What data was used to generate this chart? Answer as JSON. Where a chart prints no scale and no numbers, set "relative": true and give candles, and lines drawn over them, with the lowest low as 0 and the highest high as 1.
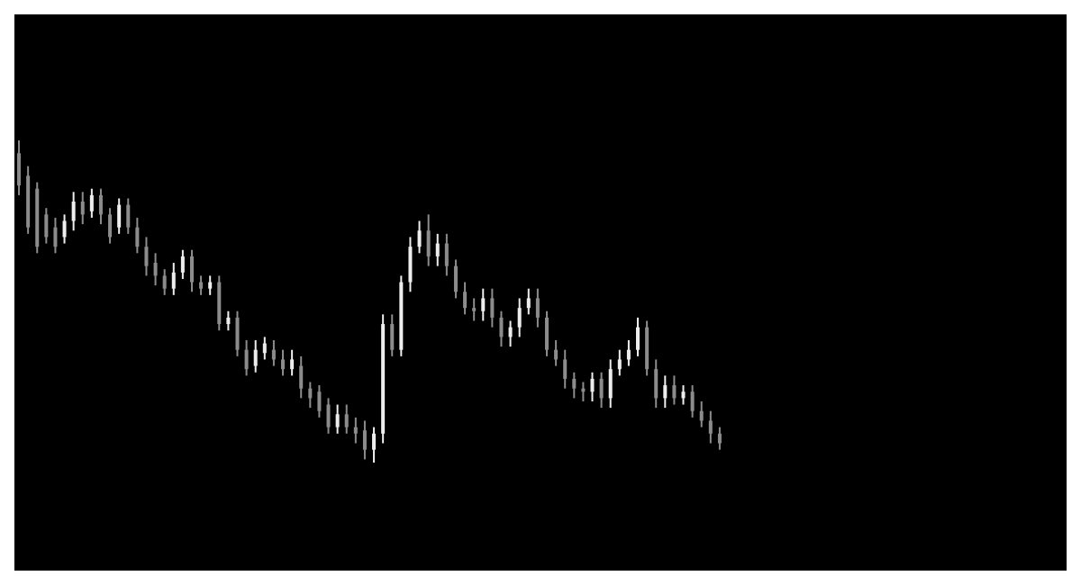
{
  "chart_data": {
    "type": "candlestick",
    "relative": true,
    "categories": [
      null,
      null,
      null,
      null,
      null,
      null,
      null,
      null,
      null,
      null,
      null,
      null,
      null,
      null,
      null,
      null,
      null,
      null,
      null,
      null,
      null,
      null,
      null,
      null,
      null,
      null,
      null,
      null,
      null,
      null,
      null,
      null,
      null,
      null,
      null,
      null,
      null,
      null,
      null,
      null,
      null,
      null,
      null,
      null,
      null,
      null,
      null,
      null,
      null,
      null,
      null,
      null,
      null,
      null,
      null,
      null,
      null,
      null,
      null,
      null,
      null,
      null,
      null,
      null,
      null,
      null,
      null,
      null,
      null,
      null,
      null,
      null,
      null,
      null,
      null,
      null,
      null,
      null
    ],
    "ohlc": [
      [
        0.96,
        1,
        0.83,
        0.86
      ],
      [
        0.89,
        0.92,
        0.71,
        0.73
      ],
      [
        0.85,
        0.87,
        0.65,
        0.67
      ],
      [
        0.77,
        0.79,
        0.68,
        0.7
      ],
      [
        0.73,
        0.76,
        0.65,
        0.67
      ],
      [
        0.7,
        0.77,
        0.68,
        0.75
      ],
      [
        0.75,
        0.84,
        0.72,
        0.81
      ],
      [
        0.81,
        0.84,
        0.74,
        0.77
      ],
      [
        0.78,
        0.85,
        0.76,
        0.83
      ],
      [
        0.83,
        0.85,
        0.74,
        0.77
      ],
      [
        0.77,
        0.79,
        0.68,
        0.7
      ],
      [
        0.73,
        0.82,
        0.71,
        0.8
      ],
      [
        0.8,
        0.82,
        0.71,
        0.73
      ],
      [
        0.73,
        0.76,
        0.65,
        0.67
      ],
      [
        0.67,
        0.7,
        0.58,
        0.61
      ],
      [
        0.62,
        0.65,
        0.55,
        0.58
      ],
      [
        0.58,
        0.6,
        0.52,
        0.54
      ],
      [
        0.54,
        0.62,
        0.52,
        0.59
      ],
      [
        0.59,
        0.66,
        0.57,
        0.64
      ],
      [
        0.64,
        0.66,
        0.53,
        0.56
      ],
      [
        0.56,
        0.58,
        0.52,
        0.54
      ],
      [
        0.54,
        0.58,
        0.52,
        0.56
      ],
      [
        0.56,
        0.58,
        0.41,
        0.43
      ],
      [
        0.43,
        0.47,
        0.41,
        0.45
      ],
      [
        0.45,
        0.47,
        0.33,
        0.35
      ],
      [
        0.35,
        0.38,
        0.27,
        0.29
      ],
      [
        0.3,
        0.38,
        0.28,
        0.35
      ],
      [
        0.34,
        0.39,
        0.32,
        0.37
      ],
      [
        0.35,
        0.38,
        0.3,
        0.32
      ],
      [
        0.32,
        0.35,
        0.27,
        0.29
      ],
      [
        0.29,
        0.35,
        0.27,
        0.32
      ],
      [
        0.3,
        0.33,
        0.2,
        0.23
      ],
      [
        0.23,
        0.25,
        0.17,
        0.2
      ],
      [
        0.22,
        0.24,
        0.14,
        0.16
      ],
      [
        0.18,
        0.2,
        0.09,
        0.11
      ],
      [
        0.11,
        0.18,
        0.09,
        0.15
      ],
      [
        0.15,
        0.18,
        0.09,
        0.11
      ],
      [
        0.11,
        0.14,
        0.06,
        0.09
      ],
      [
        0.1,
        0.13,
        0.01,
        0.04
      ],
      [
        0.04,
        0.11,
        0,
        0.09
      ],
      [
        0.09,
        0.46,
        0.06,
        0.43
      ],
      [
        0.43,
        0.46,
        0.33,
        0.35
      ],
      [
        0.35,
        0.58,
        0.33,
        0.56
      ],
      [
        0.56,
        0.7,
        0.53,
        0.67
      ],
      [
        0.67,
        0.75,
        0.65,
        0.72
      ],
      [
        0.72,
        0.77,
        0.61,
        0.64
      ],
      [
        0.64,
        0.71,
        0.61,
        0.68
      ],
      [
        0.68,
        0.71,
        0.58,
        0.61
      ],
      [
        0.61,
        0.63,
        0.51,
        0.53
      ],
      [
        0.53,
        0.56,
        0.46,
        0.48
      ],
      [
        0.48,
        0.51,
        0.44,
        0.47
      ],
      [
        0.47,
        0.54,
        0.44,
        0.51
      ],
      [
        0.51,
        0.54,
        0.42,
        0.45
      ],
      [
        0.45,
        0.47,
        0.36,
        0.39
      ],
      [
        0.39,
        0.44,
        0.36,
        0.42
      ],
      [
        0.42,
        0.51,
        0.39,
        0.48
      ],
      [
        0.48,
        0.54,
        0.46,
        0.51
      ],
      [
        0.51,
        0.54,
        0.42,
        0.45
      ],
      [
        0.45,
        0.47,
        0.33,
        0.35
      ],
      [
        0.35,
        0.38,
        0.3,
        0.32
      ],
      [
        0.32,
        0.35,
        0.23,
        0.26
      ],
      [
        0.26,
        0.28,
        0.2,
        0.23
      ],
      [
        0.23,
        0.25,
        0.19,
        0.22
      ],
      [
        0.22,
        0.28,
        0.19,
        0.26
      ],
      [
        0.26,
        0.28,
        0.17,
        0.2
      ],
      [
        0.2,
        0.32,
        0.17,
        0.29
      ],
      [
        0.29,
        0.35,
        0.27,
        0.32
      ],
      [
        0.32,
        0.38,
        0.3,
        0.35
      ],
      [
        0.35,
        0.45,
        0.33,
        0.42
      ],
      [
        0.42,
        0.44,
        0.27,
        0.29
      ],
      [
        0.29,
        0.32,
        0.17,
        0.2
      ],
      [
        0.2,
        0.27,
        0.17,
        0.24
      ],
      [
        0.24,
        0.27,
        0.18,
        0.2
      ],
      [
        0.2,
        0.24,
        0.18,
        0.22
      ],
      [
        0.22,
        0.24,
        0.14,
        0.16
      ],
      [
        0.16,
        0.19,
        0.11,
        0.13
      ],
      [
        0.13,
        0.16,
        0.06,
        0.09
      ],
      [
        0.09,
        0.11,
        0.04,
        0.06
      ]
    ],
    "colors": [
      "#8c8c8c",
      "#8c8c8c",
      "#8c8c8c",
      "#8c8c8c",
      "#8c8c8c",
      "#eeeeee",
      "#eeeeee",
      "#8c8c8c",
      "#eeeeee",
      "#8c8c8c",
      "#8c8c8c",
      "#eeeeee",
      "#8c8c8c",
      "#8c8c8c",
      "#8c8c8c",
      "#8c8c8c",
      "#8c8c8c",
      "#eeeeee",
      "#eeeeee",
      "#8c8c8c",
      "#8c8c8c",
      "#eeeeee",
      "#8c8c8c",
      "#eeeeee",
      "#8c8c8c",
      "#8c8c8c",
      "#eeeeee",
      "#eeeeee",
      "#8c8c8c",
      "#8c8c8c",
      "#eeeeee",
      "#8c8c8c",
      "#8c8c8c",
      "#8c8c8c",
      "#8c8c8c",
      "#eeeeee",
      "#8c8c8c",
      "#8c8c8c",
      "#8c8c8c",
      "#eeeeee",
      "#eeeeee",
      "#8c8c8c",
      "#eeeeee",
      "#eeeeee",
      "#eeeeee",
      "#8c8c8c",
      "#eeeeee",
      "#8c8c8c",
      "#8c8c8c",
      "#8c8c8c",
      "#8c8c8c",
      "#eeeeee",
      "#8c8c8c",
      "#8c8c8c",
      "#eeeeee",
      "#eeeeee",
      "#eeeeee",
      "#8c8c8c",
      "#8c8c8c",
      "#8c8c8c",
      "#8c8c8c",
      "#8c8c8c",
      "#8c8c8c",
      "#eeeeee",
      "#8c8c8c",
      "#eeeeee",
      "#eeeeee",
      "#eeeeee",
      "#eeeeee",
      "#8c8c8c",
      "#8c8c8c",
      "#eeeeee",
      "#8c8c8c",
      "#eeeeee",
      "#8c8c8c",
      "#8c8c8c",
      "#8c8c8c",
      "#8c8c8c"
    ]
  }
}
